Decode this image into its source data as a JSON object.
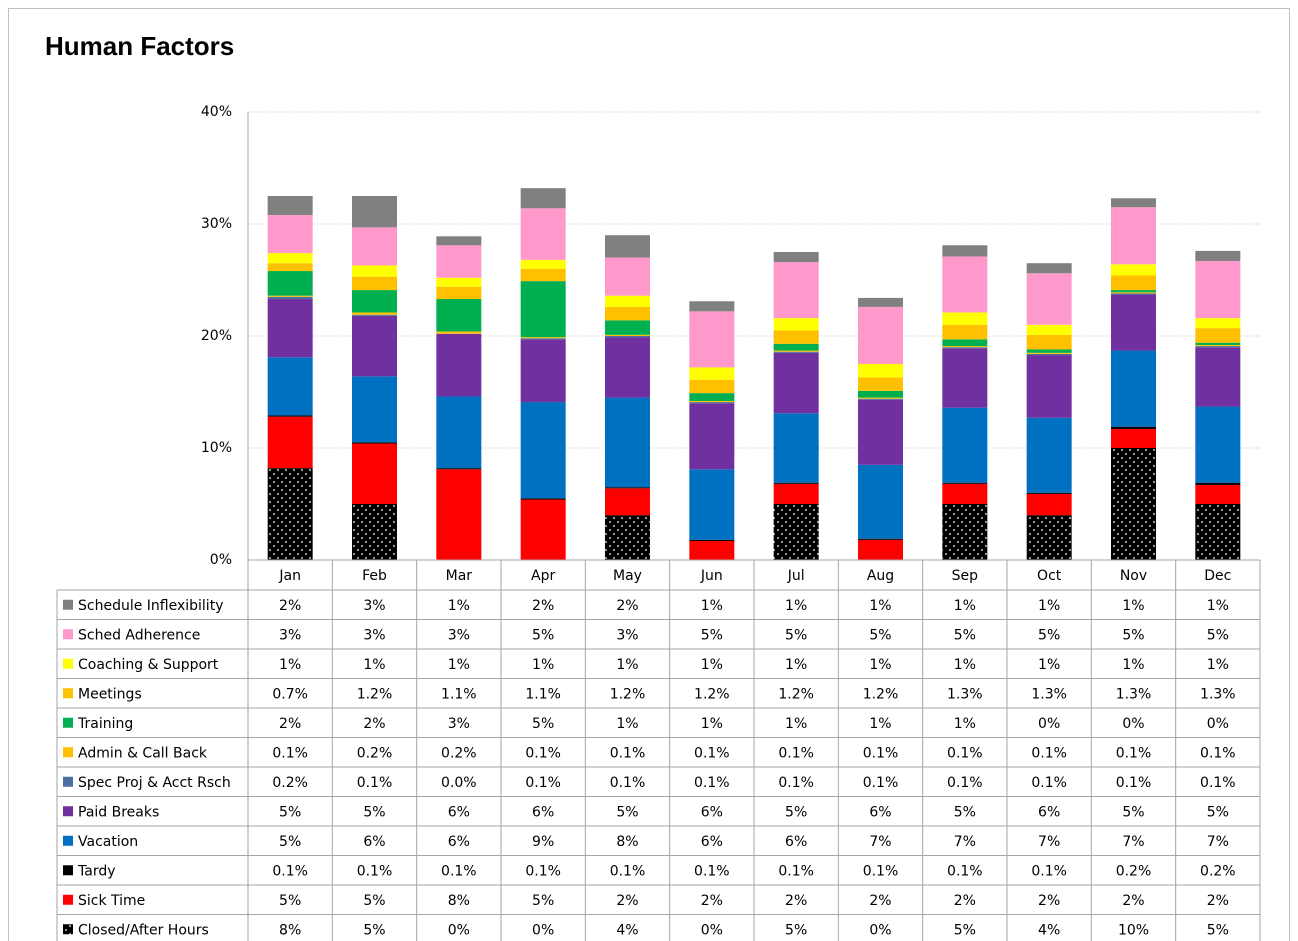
{
  "chart_data": {
    "type": "stacked_bar",
    "title": "Human Factors",
    "categories": [
      "Jan",
      "Feb",
      "Mar",
      "Apr",
      "May",
      "Jun",
      "Jul",
      "Aug",
      "Sep",
      "Oct",
      "Nov",
      "Dec"
    ],
    "ylim": [
      0,
      40
    ],
    "yticks": [
      {
        "value": 0,
        "label": "0%"
      },
      {
        "value": 10,
        "label": "10%"
      },
      {
        "value": 20,
        "label": "20%"
      },
      {
        "value": 30,
        "label": "30%"
      },
      {
        "value": 40,
        "label": "40%"
      }
    ],
    "grid": true,
    "series": [
      {
        "name": "Closed/After Hours",
        "color": "#000000",
        "pattern": "dots",
        "values": [
          8.2,
          5.0,
          0,
          0,
          4.0,
          0,
          5.0,
          0,
          5.0,
          4.0,
          10.0,
          5.0
        ],
        "value_labels": [
          "8%",
          "5%",
          "0%",
          "0%",
          "4%",
          "0%",
          "5%",
          "0%",
          "5%",
          "4%",
          "10%",
          "5%"
        ]
      },
      {
        "name": "Sick Time",
        "color": "#ff0000",
        "values": [
          4.6,
          5.4,
          8.1,
          5.4,
          2.4,
          1.7,
          1.8,
          1.8,
          1.8,
          1.9,
          1.7,
          1.7
        ],
        "value_labels": [
          "5%",
          "5%",
          "8%",
          "5%",
          "2%",
          "2%",
          "2%",
          "2%",
          "2%",
          "2%",
          "2%",
          "2%"
        ]
      },
      {
        "name": "Tardy",
        "color": "#000000",
        "values": [
          0.1,
          0.1,
          0.1,
          0.1,
          0.1,
          0.1,
          0.1,
          0.1,
          0.1,
          0.1,
          0.2,
          0.2
        ],
        "value_labels": [
          "0.1%",
          "0.1%",
          "0.1%",
          "0.1%",
          "0.1%",
          "0.1%",
          "0.1%",
          "0.1%",
          "0.1%",
          "0.1%",
          "0.2%",
          "0.2%"
        ]
      },
      {
        "name": "Vacation",
        "color": "#0070c0",
        "values": [
          5.2,
          5.9,
          6.4,
          8.6,
          8.0,
          6.3,
          6.2,
          6.6,
          6.7,
          6.7,
          6.8,
          6.8
        ],
        "value_labels": [
          "5%",
          "6%",
          "6%",
          "9%",
          "8%",
          "6%",
          "6%",
          "7%",
          "7%",
          "7%",
          "7%",
          "7%"
        ]
      },
      {
        "name": "Paid Breaks",
        "color": "#7030a0",
        "values": [
          5.2,
          5.4,
          5.6,
          5.6,
          5.4,
          5.9,
          5.4,
          5.8,
          5.3,
          5.6,
          5.0,
          5.3
        ],
        "value_labels": [
          "5%",
          "5%",
          "6%",
          "6%",
          "5%",
          "6%",
          "5%",
          "6%",
          "5%",
          "6%",
          "5%",
          "5%"
        ]
      },
      {
        "name": "Spec Proj & Acct Rsch",
        "color": "#4a6fa0",
        "values": [
          0.2,
          0.1,
          0.0,
          0.1,
          0.1,
          0.1,
          0.1,
          0.1,
          0.1,
          0.1,
          0.1,
          0.1
        ],
        "value_labels": [
          "0.2%",
          "0.1%",
          "0.0%",
          "0.1%",
          "0.1%",
          "0.1%",
          "0.1%",
          "0.1%",
          "0.1%",
          "0.1%",
          "0.1%",
          "0.1%"
        ]
      },
      {
        "name": "Admin & Call Back",
        "color": "#ffc000",
        "values": [
          0.1,
          0.2,
          0.2,
          0.1,
          0.1,
          0.1,
          0.1,
          0.1,
          0.1,
          0.1,
          0.1,
          0.1
        ],
        "value_labels": [
          "0.1%",
          "0.2%",
          "0.2%",
          "0.1%",
          "0.1%",
          "0.1%",
          "0.1%",
          "0.1%",
          "0.1%",
          "0.1%",
          "0.1%",
          "0.1%"
        ]
      },
      {
        "name": "Training",
        "color": "#00b050",
        "values": [
          2.2,
          2.0,
          2.9,
          5.0,
          1.3,
          0.7,
          0.6,
          0.6,
          0.6,
          0.3,
          0.2,
          0.2
        ],
        "value_labels": [
          "2%",
          "2%",
          "3%",
          "5%",
          "1%",
          "1%",
          "1%",
          "1%",
          "1%",
          "0%",
          "0%",
          "0%"
        ]
      },
      {
        "name": "Meetings",
        "color": "#ffc000",
        "values": [
          0.7,
          1.2,
          1.1,
          1.1,
          1.2,
          1.2,
          1.2,
          1.2,
          1.3,
          1.3,
          1.3,
          1.3
        ],
        "value_labels": [
          "0.7%",
          "1.2%",
          "1.1%",
          "1.1%",
          "1.2%",
          "1.2%",
          "1.2%",
          "1.2%",
          "1.3%",
          "1.3%",
          "1.3%",
          "1.3%"
        ]
      },
      {
        "name": "Coaching & Support",
        "color": "#ffff00",
        "values": [
          0.9,
          1.0,
          0.8,
          0.8,
          1.0,
          1.1,
          1.1,
          1.2,
          1.1,
          0.9,
          1.0,
          0.9
        ],
        "value_labels": [
          "1%",
          "1%",
          "1%",
          "1%",
          "1%",
          "1%",
          "1%",
          "1%",
          "1%",
          "1%",
          "1%",
          "1%"
        ]
      },
      {
        "name": "Sched Adherence",
        "color": "#ff99cc",
        "values": [
          3.4,
          3.4,
          2.9,
          4.6,
          3.4,
          5.0,
          5.0,
          5.1,
          5.0,
          4.6,
          5.1,
          5.1
        ],
        "value_labels": [
          "3%",
          "3%",
          "3%",
          "5%",
          "3%",
          "5%",
          "5%",
          "5%",
          "5%",
          "5%",
          "5%",
          "5%"
        ]
      },
      {
        "name": "Schedule Inflexibility",
        "color": "#808080",
        "values": [
          1.7,
          2.8,
          0.8,
          1.8,
          2.0,
          0.9,
          0.9,
          0.8,
          1.0,
          0.9,
          0.8,
          0.9
        ],
        "value_labels": [
          "2%",
          "3%",
          "1%",
          "2%",
          "2%",
          "1%",
          "1%",
          "1%",
          "1%",
          "1%",
          "1%",
          "1%"
        ]
      }
    ]
  }
}
